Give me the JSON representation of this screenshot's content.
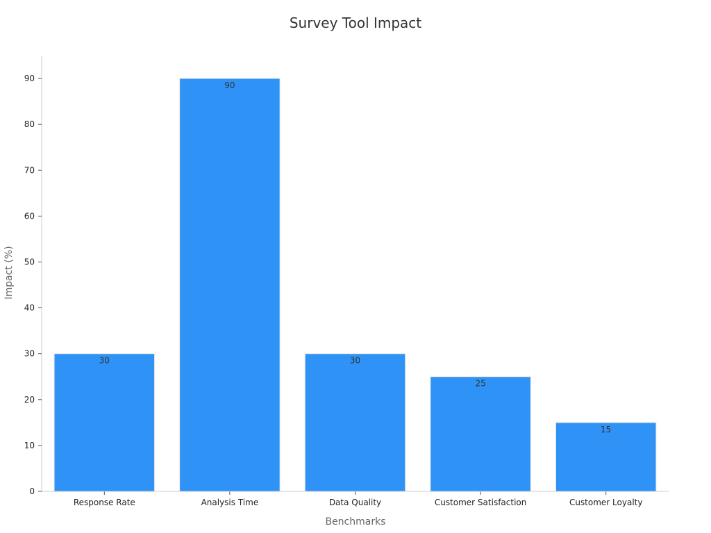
{
  "chart_data": {
    "type": "bar",
    "title": "Survey Tool Impact",
    "xlabel": "Benchmarks",
    "ylabel": "Impact (%)",
    "categories": [
      "Response Rate",
      "Analysis Time",
      "Data Quality",
      "Customer Satisfaction",
      "Customer Loyalty"
    ],
    "values": [
      30,
      90,
      30,
      25,
      15
    ],
    "ylim": [
      0,
      95
    ],
    "yticks": [
      0,
      10,
      20,
      30,
      40,
      50,
      60,
      70,
      80,
      90
    ],
    "bar_color": "#2f92f7",
    "grid": false,
    "legend": "none"
  }
}
